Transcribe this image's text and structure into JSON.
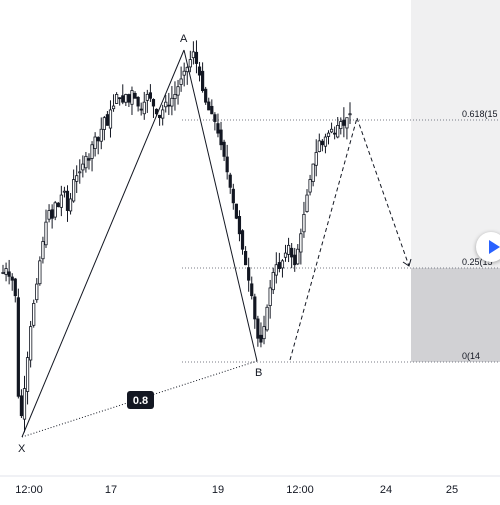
{
  "chart_data": {
    "type": "candlestick",
    "x_ticks": [
      "12:00",
      "17",
      "19",
      "12:00",
      "24",
      "25"
    ],
    "pattern_points": [
      {
        "label": "X",
        "price_norm": 0.0
      },
      {
        "label": "A",
        "price_norm": 1.0
      },
      {
        "label": "B",
        "price_norm": 0.195
      }
    ],
    "ratio_label": "0.8",
    "fib_levels": [
      {
        "label": "0.618(15",
        "value": 0.618
      },
      {
        "label": "0.25(15",
        "value": 0.25
      },
      {
        "label": "0(14",
        "value": 0.0
      }
    ],
    "projection": {
      "c_price_norm": 0.82,
      "d_price_norm": 0.43
    },
    "price_series_norm": [
      0.42,
      0.43,
      0.41,
      0.4,
      0.36,
      0.1,
      0.05,
      0.12,
      0.2,
      0.28,
      0.34,
      0.39,
      0.45,
      0.5,
      0.55,
      0.58,
      0.56,
      0.6,
      0.59,
      0.62,
      0.63,
      0.58,
      0.61,
      0.66,
      0.67,
      0.68,
      0.7,
      0.72,
      0.71,
      0.75,
      0.77,
      0.76,
      0.79,
      0.82,
      0.8,
      0.84,
      0.85,
      0.88,
      0.87,
      0.86,
      0.88,
      0.86,
      0.89,
      0.87,
      0.85,
      0.84,
      0.86,
      0.88,
      0.87,
      0.85,
      0.83,
      0.82,
      0.84,
      0.86,
      0.85,
      0.87,
      0.88,
      0.9,
      0.92,
      0.94,
      0.95,
      0.97,
      0.99,
      0.96,
      0.93,
      0.89,
      0.86,
      0.84,
      0.83,
      0.81,
      0.78,
      0.75,
      0.72,
      0.68,
      0.64,
      0.6,
      0.56,
      0.52,
      0.48,
      0.44,
      0.4,
      0.36,
      0.3,
      0.25,
      0.24,
      0.28,
      0.33,
      0.38,
      0.42,
      0.44,
      0.43,
      0.45,
      0.47,
      0.49,
      0.46,
      0.44,
      0.48,
      0.52,
      0.57,
      0.62,
      0.66,
      0.7,
      0.73,
      0.76,
      0.75,
      0.77,
      0.78,
      0.79,
      0.78,
      0.8,
      0.81,
      0.8,
      0.82,
      0.83
    ]
  },
  "colors": {
    "candle": "#131722",
    "grid": "#787b86",
    "shade_light": "#f0f0f1",
    "shade_dark": "#d1d1d4",
    "ratio_box": "#131722",
    "accent": "#2962ff"
  },
  "icons": {
    "play": "play-icon"
  }
}
